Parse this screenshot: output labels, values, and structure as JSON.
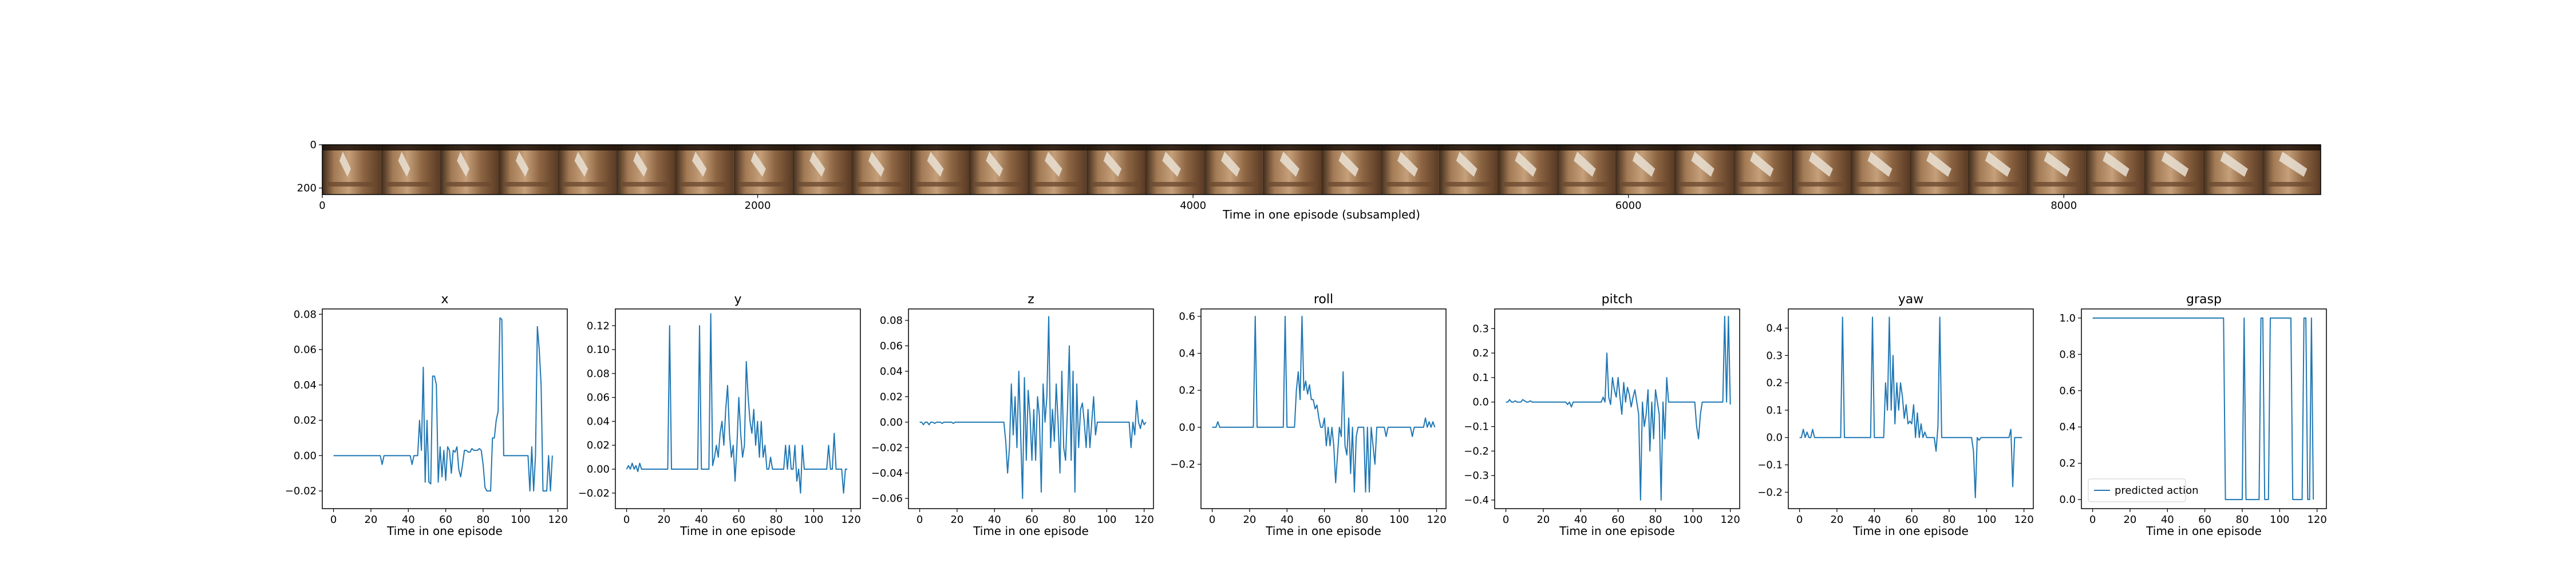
{
  "filmstrip": {
    "xlabel": "Time in one episode (subsampled)",
    "xticks": [
      0,
      2000,
      4000,
      6000,
      8000
    ],
    "yticks": [
      0,
      200
    ],
    "xlim": [
      0,
      9180
    ],
    "ylim": [
      0,
      230
    ],
    "frame_count": 34
  },
  "chart_data": [
    {
      "type": "line",
      "title": "x",
      "xlabel": "Time in one episode",
      "xlim": [
        -6,
        125
      ],
      "ylim": [
        -0.03,
        0.083
      ],
      "xticks": [
        0,
        20,
        40,
        60,
        80,
        100,
        120
      ],
      "yticks": [
        -0.02,
        0.0,
        0.02,
        0.04,
        0.06,
        0.08
      ],
      "ytick_labels": [
        "−0.02",
        "0.00",
        "0.02",
        "0.04",
        "0.06",
        "0.08"
      ],
      "series": [
        {
          "values": [
            0,
            0,
            0,
            0,
            0,
            0,
            0,
            0,
            0,
            0,
            0,
            0,
            0,
            0,
            0,
            0,
            0,
            0,
            0,
            0,
            0,
            0,
            0,
            0,
            0,
            0,
            -0.005,
            0,
            0,
            0,
            0,
            0,
            0,
            0,
            0,
            0,
            0,
            0,
            0,
            0,
            0,
            0,
            -0.005,
            0,
            0,
            0,
            0.02,
            0.003,
            0.05,
            -0.015,
            0.02,
            -0.015,
            -0.016,
            0.045,
            0.045,
            0.04,
            -0.015,
            0.005,
            -0.012,
            0.003,
            -0.014,
            0.005,
            0.003,
            -0.01,
            0.003,
            0.002,
            0.005,
            -0.008,
            -0.012,
            -0.005,
            0.003,
            0.003,
            0.002,
            0.002,
            0.004,
            0.003,
            0.003,
            0.003,
            0.004,
            0.003,
            -0.005,
            -0.018,
            -0.02,
            -0.02,
            -0.02,
            0.01,
            0.01,
            0.02,
            0.025,
            0.078,
            0.077,
            0.0,
            0.0,
            0.0,
            0.0,
            0.0,
            0.0,
            0.0,
            0.0,
            0.0,
            0.0,
            0.0,
            0.0,
            0.0,
            0.0,
            -0.02,
            0.005,
            -0.02,
            0.0,
            0.073,
            0.06,
            0.04,
            -0.02,
            -0.02,
            -0.02,
            0.0,
            -0.02,
            0.0
          ]
        }
      ]
    },
    {
      "type": "line",
      "title": "y",
      "xlabel": "Time in one episode",
      "xlim": [
        -6,
        125
      ],
      "ylim": [
        -0.033,
        0.134
      ],
      "xticks": [
        0,
        20,
        40,
        60,
        80,
        100,
        120
      ],
      "yticks": [
        -0.02,
        0.0,
        0.02,
        0.04,
        0.06,
        0.08,
        0.1,
        0.12
      ],
      "ytick_labels": [
        "−0.02",
        "0.00",
        "0.02",
        "0.04",
        "0.06",
        "0.08",
        "0.10",
        "0.12"
      ],
      "series": [
        {
          "values": [
            0,
            0.003,
            0,
            0.005,
            0,
            0.003,
            -0.002,
            0.005,
            0,
            0,
            0,
            0,
            0,
            0,
            0,
            0,
            0,
            0,
            0,
            0,
            0,
            0,
            0,
            0.12,
            0,
            0,
            0,
            0,
            0,
            0,
            0,
            0,
            0,
            0,
            0,
            0,
            0,
            0,
            0,
            0.12,
            0,
            0,
            0,
            0,
            0,
            0.13,
            0.003,
            0.01,
            0.02,
            0.01,
            0.03,
            0.04,
            0.02,
            0.05,
            0.07,
            0.03,
            0.01,
            0.02,
            -0.01,
            0.02,
            0.06,
            0.03,
            0.01,
            0.02,
            0.09,
            0.06,
            0.04,
            0.03,
            0.05,
            0.02,
            0.04,
            0.01,
            0.04,
            0.01,
            0.02,
            0,
            0,
            0.01,
            0.0,
            0.0,
            0.0,
            0.0,
            0.0,
            0.0,
            0.0,
            0.02,
            0.0,
            0.02,
            0.0,
            0.0,
            0.02,
            -0.01,
            0.0,
            -0.02,
            0.02,
            0.0,
            0.0,
            0.0,
            0.0,
            0.0,
            0.0,
            0.0,
            0.0,
            0.0,
            0.0,
            0.0,
            0.0,
            0.0,
            0.02,
            0.0,
            0.0,
            0.03,
            0.0,
            0.0,
            0.0,
            0.0,
            -0.02,
            0.0,
            0.0
          ]
        }
      ]
    },
    {
      "type": "line",
      "title": "z",
      "xlabel": "Time in one episode",
      "xlim": [
        -6,
        125
      ],
      "ylim": [
        -0.068,
        0.089
      ],
      "xticks": [
        0,
        20,
        40,
        60,
        80,
        100,
        120
      ],
      "yticks": [
        -0.06,
        -0.04,
        -0.02,
        0.0,
        0.02,
        0.04,
        0.06,
        0.08
      ],
      "ytick_labels": [
        "−0.06",
        "−0.04",
        "−0.02",
        "0.00",
        "0.02",
        "0.04",
        "0.06",
        "0.08"
      ],
      "series": [
        {
          "values": [
            0,
            0,
            -0.002,
            0,
            0,
            -0.002,
            0,
            0,
            -0.001,
            0,
            0,
            0,
            -0.001,
            0,
            0,
            0,
            0,
            0,
            -0.001,
            0,
            0,
            0,
            0,
            0,
            0,
            0,
            0,
            0,
            0,
            0,
            0,
            0,
            0,
            0,
            0,
            0,
            0,
            0,
            0,
            0,
            0,
            0,
            0,
            0,
            0,
            0,
            -0.015,
            -0.04,
            -0.02,
            0.03,
            -0.01,
            0.02,
            -0.02,
            0.04,
            -0.01,
            -0.06,
            0.035,
            -0.03,
            0.025,
            0.005,
            -0.03,
            0.01,
            -0.03,
            0.02,
            0.005,
            -0.055,
            0.03,
            0.0,
            0.02,
            0.083,
            -0.02,
            0.01,
            -0.015,
            0.03,
            0.0,
            -0.04,
            0.04,
            -0.02,
            -0.03,
            0.01,
            0.06,
            -0.03,
            0.04,
            -0.055,
            0.03,
            -0.02,
            0.01,
            0.015,
            0.0,
            -0.02,
            0.01,
            -0.02,
            0.0,
            0.02,
            -0.01,
            0.0,
            0.0,
            0.0,
            0.0,
            0.0,
            0.0,
            0.0,
            0.0,
            0.0,
            0.0,
            0.0,
            0.0,
            0.0,
            0.0,
            0.0,
            0.0,
            0.0,
            0.0,
            -0.02,
            0.0,
            -0.01,
            0.017,
            0.0,
            -0.005,
            0.002,
            -0.002,
            0.0
          ]
        }
      ]
    },
    {
      "type": "line",
      "title": "roll",
      "xlabel": "Time in one episode",
      "xlim": [
        -6,
        125
      ],
      "ylim": [
        -0.44,
        0.64
      ],
      "xticks": [
        0,
        20,
        40,
        60,
        80,
        100,
        120
      ],
      "yticks": [
        -0.2,
        0.0,
        0.2,
        0.4,
        0.6
      ],
      "ytick_labels": [
        "−0.2",
        "0.0",
        "0.2",
        "0.4",
        "0.6"
      ],
      "series": [
        {
          "values": [
            0,
            0,
            0,
            0.03,
            0,
            0,
            0,
            0,
            0,
            0,
            0,
            0,
            0,
            0,
            0,
            0,
            0,
            0,
            0,
            0,
            0,
            0,
            0,
            0.6,
            0,
            0,
            0,
            0,
            0,
            0,
            0,
            0,
            0,
            0,
            0,
            0,
            0,
            0,
            0,
            0.6,
            0,
            0,
            0,
            0,
            0,
            0.2,
            0.3,
            0.15,
            0.6,
            0.2,
            0.25,
            0.18,
            0.23,
            0.15,
            0.15,
            0.1,
            0.12,
            0.05,
            0.0,
            0.0,
            0.05,
            -0.1,
            0.0,
            -0.1,
            0.0,
            -0.1,
            -0.3,
            -0.15,
            0.0,
            -0.05,
            0.3,
            -0.1,
            -0.15,
            0.05,
            -0.25,
            0.0,
            -0.35,
            -0.05,
            0.0,
            0.0,
            0.0,
            0.0,
            -0.35,
            0.0,
            -0.35,
            0.0,
            -0.1,
            -0.2,
            0.0,
            0.0,
            0.0,
            0.0,
            0.0,
            -0.05,
            0.0,
            0.0,
            0.0,
            0.0,
            0.0,
            0.0,
            0.0,
            0.0,
            0.0,
            0.0,
            0.0,
            0.0,
            0.0,
            -0.05,
            0.0,
            0.0,
            0.0,
            0.0,
            0.0,
            0.0,
            0.05,
            0.0,
            0.03,
            0.0,
            0.03,
            0.0
          ]
        }
      ]
    },
    {
      "type": "line",
      "title": "pitch",
      "xlabel": "Time in one episode",
      "xlim": [
        -6,
        125
      ],
      "ylim": [
        -0.435,
        0.38
      ],
      "xticks": [
        0,
        20,
        40,
        60,
        80,
        100,
        120
      ],
      "yticks": [
        -0.4,
        -0.3,
        -0.2,
        -0.1,
        0.0,
        0.1,
        0.2,
        0.3
      ],
      "ytick_labels": [
        "−0.4",
        "−0.3",
        "−0.2",
        "−0.1",
        "0.0",
        "0.1",
        "0.2",
        "0.3"
      ],
      "series": [
        {
          "values": [
            0,
            0,
            0.01,
            0,
            0,
            0.005,
            0,
            0,
            0,
            0.01,
            0.005,
            0.0,
            0.0,
            0.005,
            0.0,
            0.0,
            0.0,
            0.0,
            0.0,
            0.0,
            0.0,
            0.0,
            0.0,
            0.0,
            0.0,
            0.0,
            0.0,
            0.0,
            0.0,
            0.0,
            0.0,
            0.0,
            0.0,
            -0.01,
            0.0,
            -0.02,
            0.0,
            0.0,
            0.0,
            0.0,
            0.0,
            0.0,
            0.0,
            0.0,
            0.0,
            0.0,
            0.0,
            0.0,
            0.0,
            0.0,
            0.0,
            0.0,
            0.02,
            0.0,
            0.2,
            0.02,
            -0.01,
            0.1,
            0.05,
            0.02,
            0.1,
            0.02,
            -0.05,
            0.08,
            0.0,
            0.06,
            0.03,
            -0.02,
            0.02,
            0.05,
            0.0,
            -0.05,
            -0.4,
            0.0,
            -0.1,
            -0.05,
            0.05,
            -0.2,
            0.0,
            -0.15,
            0.05,
            0.0,
            -0.05,
            -0.4,
            0.0,
            -0.15,
            0.1,
            0.0,
            0.0,
            0.0,
            0.0,
            0.0,
            0.0,
            0.0,
            0.0,
            0.0,
            0.0,
            0.0,
            0.0,
            0.0,
            0.0,
            0.0,
            -0.1,
            -0.15,
            -0.05,
            0.0,
            0.0,
            0.0,
            0.0,
            0.0,
            0.0,
            0.0,
            0.0,
            0.0,
            0.0,
            0.0,
            0.0,
            0.35,
            0.0,
            0.35,
            -0.01
          ]
        }
      ]
    },
    {
      "type": "line",
      "title": "yaw",
      "xlabel": "Time in one episode",
      "xlim": [
        -6,
        125
      ],
      "ylim": [
        -0.26,
        0.47
      ],
      "xticks": [
        0,
        20,
        40,
        60,
        80,
        100,
        120
      ],
      "yticks": [
        -0.2,
        -0.1,
        0.0,
        0.1,
        0.2,
        0.3,
        0.4
      ],
      "ytick_labels": [
        "−0.2",
        "−0.1",
        "0.0",
        "0.1",
        "0.2",
        "0.3",
        "0.4"
      ],
      "series": [
        {
          "values": [
            0,
            0,
            0.03,
            0,
            0.02,
            0,
            0,
            0.03,
            0,
            0,
            0,
            0,
            0,
            0,
            0,
            0,
            0,
            0,
            0,
            0,
            0,
            0,
            0,
            0.44,
            0,
            0,
            0,
            0,
            0,
            0,
            0,
            0,
            0,
            0,
            0,
            0,
            0,
            0,
            0,
            0.44,
            0,
            0,
            0,
            0,
            0,
            0,
            0.2,
            0.1,
            0.44,
            0.1,
            0.3,
            0.05,
            0.2,
            0.1,
            0.2,
            0.15,
            0.07,
            0.12,
            0.05,
            0.06,
            0.05,
            0.12,
            0.0,
            0.09,
            0.0,
            0.05,
            0.0,
            0.02,
            0.0,
            0.0,
            0.0,
            0.0,
            0.0,
            -0.05,
            0.04,
            0.44,
            0.0,
            0.0,
            0.0,
            0.0,
            0.0,
            0.0,
            0.0,
            0.0,
            0.0,
            0.0,
            0.0,
            0.0,
            0.0,
            0.0,
            0.0,
            0.0,
            0.0,
            -0.05,
            -0.22,
            0.0,
            -0.01,
            0.0,
            0.0,
            0.0,
            0.0,
            0.0,
            0.0,
            0.0,
            0.0,
            0.0,
            0.0,
            0.0,
            0.0,
            0.0,
            0.0,
            0.0,
            0.0,
            0.03,
            -0.18,
            0.0,
            0.0,
            0.0,
            0.0,
            0.0
          ]
        }
      ]
    },
    {
      "type": "line",
      "title": "grasp",
      "xlabel": "Time in one episode",
      "xlim": [
        -6,
        125
      ],
      "ylim": [
        -0.05,
        1.05
      ],
      "xticks": [
        0,
        20,
        40,
        60,
        80,
        100,
        120
      ],
      "yticks": [
        0.0,
        0.2,
        0.4,
        0.6,
        0.8,
        1.0
      ],
      "ytick_labels": [
        "0.0",
        "0.2",
        "0.4",
        "0.6",
        "0.8",
        "1.0"
      ],
      "legend": {
        "location": "lower-left",
        "label": "predicted action"
      },
      "series": [
        {
          "name": "predicted action",
          "values": [
            1,
            1,
            1,
            1,
            1,
            1,
            1,
            1,
            1,
            1,
            1,
            1,
            1,
            1,
            1,
            1,
            1,
            1,
            1,
            1,
            1,
            1,
            1,
            1,
            1,
            1,
            1,
            1,
            1,
            1,
            1,
            1,
            1,
            1,
            1,
            1,
            1,
            1,
            1,
            1,
            1,
            1,
            1,
            1,
            1,
            1,
            1,
            1,
            1,
            1,
            1,
            1,
            1,
            1,
            1,
            1,
            1,
            1,
            1,
            1,
            1,
            1,
            1,
            1,
            1,
            1,
            1,
            1,
            1,
            1,
            1,
            0,
            0,
            0,
            0,
            0,
            0,
            0,
            0,
            0,
            0,
            1,
            0,
            0,
            0,
            0,
            0,
            0,
            0,
            0,
            1,
            1,
            0,
            0,
            0,
            1,
            1,
            1,
            1,
            1,
            1,
            1,
            1,
            1,
            1,
            1,
            1,
            0,
            0,
            0,
            0,
            0,
            0,
            1,
            1,
            0,
            0,
            1,
            0
          ]
        }
      ]
    }
  ],
  "colors": {
    "line": "#1f77b4"
  }
}
